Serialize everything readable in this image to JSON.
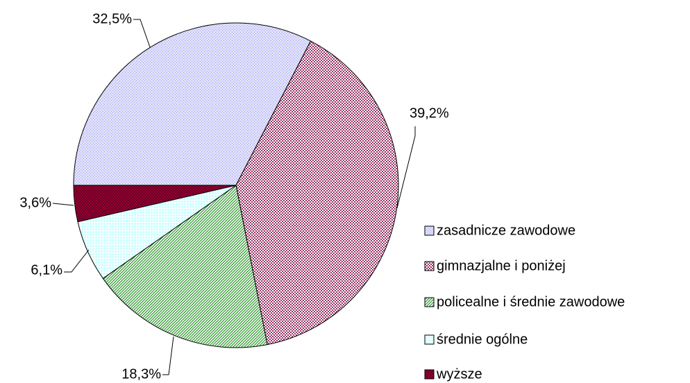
{
  "chart_data": {
    "type": "pie",
    "categories": [
      "zasadnicze zawodowe",
      "gimnazjalne i poniżej",
      "policealne i średnie zawodowe",
      "średnie ogólne",
      "wyższe"
    ],
    "values": [
      32.5,
      39.2,
      18.3,
      6.1,
      3.6
    ],
    "value_labels": [
      "32,5%",
      "39,2%",
      "18,3%",
      "6,1%",
      "3,6%"
    ],
    "colors": [
      "#9999ff",
      "#993366",
      "#339933",
      "#ccffff",
      "#990033"
    ],
    "legend": "right"
  }
}
